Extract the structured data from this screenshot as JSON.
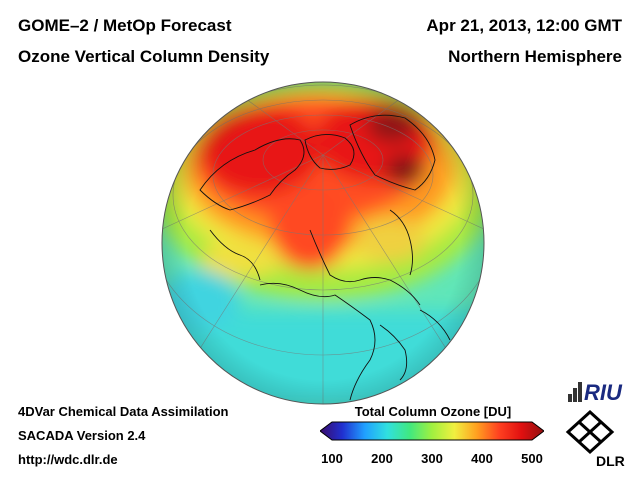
{
  "header": {
    "left_line1": "GOME–2 / MetOp Forecast",
    "left_line2": "Ozone Vertical Column Density",
    "right_line1": "Apr 21, 2013, 12:00 GMT",
    "right_line2": "Northern Hemisphere"
  },
  "footer": {
    "line1": "4DVar Chemical Data Assimilation",
    "line2": "SACADA Version 2.4",
    "line3": "http://wdc.dlr.de"
  },
  "legend": {
    "title": "Total Column Ozone [DU]",
    "ticks": [
      "100",
      "200",
      "300",
      "400",
      "500"
    ],
    "range": [
      100,
      500
    ],
    "colors": [
      "#3a0a6a",
      "#2030d0",
      "#20a0ff",
      "#30e0e0",
      "#40e880",
      "#a0f040",
      "#f0f040",
      "#ffa020",
      "#ff4020",
      "#e01010",
      "#901010"
    ]
  },
  "logos": {
    "riu": "RIU",
    "dlr": "DLR"
  }
}
